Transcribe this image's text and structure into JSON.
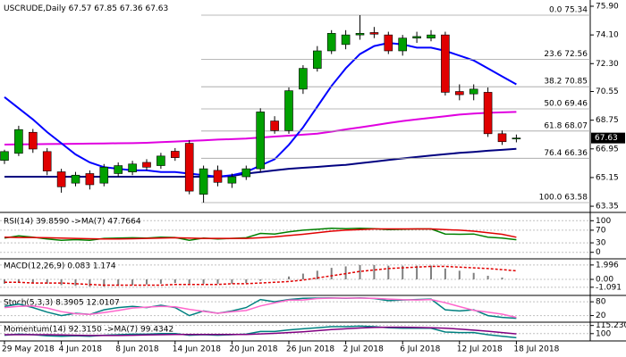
{
  "chart_data": [
    {
      "type": "candlestick",
      "title": "USCRUDE,Daily",
      "categories": [
        "29 May 2018",
        null,
        null,
        null,
        "4 Jun 2018",
        null,
        null,
        null,
        "8 Jun 2018",
        null,
        null,
        null,
        "14 Jun 2018",
        null,
        null,
        null,
        "20 Jun 2018",
        null,
        null,
        null,
        "26 Jun 2018",
        null,
        null,
        null,
        "2 Jul 2018",
        null,
        null,
        null,
        "6 Jul 2018",
        null,
        null,
        null,
        "12 Jul 2018",
        null,
        null,
        null,
        "18 Jul 2018"
      ],
      "open": [
        66.23,
        66.67,
        67.99,
        66.78,
        65.51,
        64.8,
        65.4,
        64.8,
        65.4,
        65.5,
        66.1,
        65.9,
        66.8,
        67.3,
        64.1,
        65.6,
        64.8,
        65.2,
        65.7,
        68.7,
        68.1,
        70.7,
        72.0,
        73.1,
        73.5,
        74.1,
        74.25,
        74.1,
        73.1,
        73.9,
        73.9,
        74.1,
        70.55,
        70.4,
        70.5,
        67.9,
        67.57
      ],
      "high": [
        66.9,
        68.4,
        68.2,
        67.0,
        65.7,
        65.5,
        65.6,
        66.0,
        66.1,
        66.2,
        66.3,
        66.7,
        67.0,
        67.5,
        65.9,
        65.9,
        65.4,
        65.9,
        69.5,
        69.0,
        70.8,
        72.2,
        73.4,
        74.4,
        74.4,
        75.34,
        74.6,
        74.3,
        74.1,
        74.3,
        74.4,
        74.3,
        71.0,
        71.0,
        70.8,
        68.1,
        67.85
      ],
      "low": [
        66.0,
        66.5,
        66.7,
        65.3,
        64.2,
        64.6,
        64.4,
        64.6,
        65.2,
        65.3,
        65.6,
        65.7,
        66.2,
        64.1,
        63.58,
        64.6,
        64.5,
        65.0,
        65.5,
        67.9,
        67.9,
        70.4,
        71.8,
        72.9,
        73.2,
        73.8,
        73.9,
        72.9,
        72.8,
        73.6,
        73.7,
        70.3,
        70.0,
        70.0,
        67.7,
        67.2,
        67.36
      ],
      "close": [
        66.78,
        68.16,
        66.94,
        65.56,
        64.57,
        65.3,
        64.7,
        65.8,
        65.9,
        66.0,
        65.8,
        66.5,
        66.4,
        64.3,
        65.7,
        64.85,
        65.2,
        65.7,
        69.27,
        68.1,
        70.6,
        72.0,
        73.1,
        74.2,
        74.1,
        74.2,
        74.15,
        73.1,
        73.9,
        74.0,
        74.1,
        70.5,
        70.35,
        70.7,
        67.9,
        67.4,
        67.63
      ],
      "up_color": "#00a000",
      "down_color": "#e00000",
      "ylim": [
        63.13,
        76.18
      ],
      "yticks": [
        {
          "value": 75.9,
          "label": "75.90"
        },
        {
          "value": 74.1,
          "label": "74.10"
        },
        {
          "value": 72.3,
          "label": "72.30"
        },
        {
          "value": 70.55,
          "label": "70.55"
        },
        {
          "value": 68.75,
          "label": "68.75"
        },
        {
          "value": 66.95,
          "label": "66.95"
        },
        {
          "value": 65.15,
          "label": "65.15"
        },
        {
          "value": 63.35,
          "label": "63.35"
        }
      ],
      "fib_levels": [
        {
          "value": 75.34,
          "label": "0.0 75.34"
        },
        {
          "value": 72.56,
          "label": "23.6 72.56"
        },
        {
          "value": 70.85,
          "label": "38.2 70.85"
        },
        {
          "value": 69.46,
          "label": "50.0 69.46"
        },
        {
          "value": 68.07,
          "label": "61.8 68.07"
        },
        {
          "value": 66.36,
          "label": "76.4 66.36"
        },
        {
          "value": 63.58,
          "label": "100.0 63.58"
        }
      ],
      "series": [
        {
          "color": "#000080",
          "values": [
            65.2,
            65.2,
            65.2,
            65.2,
            65.2,
            65.2,
            65.2,
            65.2,
            65.2,
            65.2,
            65.2,
            65.2,
            65.2,
            65.2,
            65.2,
            65.2,
            65.25,
            65.4,
            65.5,
            65.6,
            65.7,
            65.76,
            65.82,
            65.89,
            65.95,
            66.05,
            66.15,
            66.25,
            66.35,
            66.44,
            66.53,
            66.62,
            66.7,
            66.76,
            66.83,
            66.89,
            66.95
          ]
        },
        {
          "color": "#e000e0",
          "values": [
            67.22,
            67.23,
            67.24,
            67.25,
            67.26,
            67.27,
            67.28,
            67.29,
            67.3,
            67.31,
            67.33,
            67.37,
            67.41,
            67.45,
            67.49,
            67.53,
            67.56,
            67.6,
            67.66,
            67.72,
            67.78,
            67.84,
            67.9,
            68.03,
            68.17,
            68.3,
            68.43,
            68.57,
            68.7,
            68.8,
            68.9,
            69.0,
            69.1,
            69.17,
            69.21,
            69.24,
            69.27
          ]
        },
        {
          "color": "#0000ff",
          "values": [
            70.2,
            69.5,
            68.8,
            68.0,
            67.3,
            66.6,
            66.1,
            65.8,
            65.7,
            65.6,
            65.6,
            65.5,
            65.5,
            65.4,
            65.3,
            65.2,
            65.3,
            65.5,
            65.9,
            66.3,
            67.2,
            68.3,
            69.6,
            70.9,
            72.0,
            72.9,
            73.4,
            73.6,
            73.5,
            73.3,
            73.3,
            73.1,
            72.8,
            72.5,
            72.0,
            71.5,
            71.0
          ]
        }
      ]
    },
    {
      "type": "line",
      "title": "RSI(14) 39.8590 ->MA(7) 47.7664",
      "ylim": [
        -15,
        115
      ],
      "yticks": [
        100,
        70,
        30,
        0
      ],
      "series": [
        {
          "color": "#008000",
          "values": [
            45,
            52,
            48,
            42,
            38,
            40,
            38,
            44,
            45,
            46,
            45,
            48,
            47,
            38,
            45,
            42,
            44,
            46,
            60,
            58,
            65,
            70,
            73,
            76,
            75,
            76,
            75,
            72,
            73,
            74,
            74,
            58,
            57,
            58,
            48,
            45,
            39.859
          ]
        },
        {
          "color": "#e00000",
          "values": [
            48,
            47,
            47,
            46,
            45,
            44,
            43,
            42,
            42,
            43,
            44,
            45,
            46,
            45,
            44,
            44,
            44,
            44,
            46,
            49,
            53,
            57,
            62,
            67,
            70,
            72,
            74,
            74,
            74,
            74,
            74,
            72,
            70,
            67,
            62,
            57,
            47.7664
          ]
        }
      ]
    },
    {
      "type": "line",
      "title": "MACD(12,26,9) 0.083 1.174",
      "ylim": [
        -2.1,
        2.6
      ],
      "yticks": [
        1.996,
        {
          "value": 0,
          "label": "0.00"
        },
        -1.091
      ],
      "series": [
        {
          "color": "#808080",
          "style": "bar",
          "values": [
            -0.6,
            -0.5,
            -0.5,
            -0.6,
            -0.8,
            -0.9,
            -1.0,
            -1.0,
            -0.9,
            -0.8,
            -0.7,
            -0.6,
            -0.5,
            -0.6,
            -0.6,
            -0.6,
            -0.6,
            -0.5,
            -0.2,
            0.0,
            0.4,
            0.8,
            1.2,
            1.6,
            1.8,
            2.0,
            2.0,
            1.9,
            1.9,
            1.9,
            1.9,
            1.5,
            1.2,
            0.9,
            0.5,
            0.25,
            0.083
          ]
        },
        {
          "color": "#e00000",
          "style": "dashed",
          "values": [
            -0.4,
            -0.4,
            -0.5,
            -0.5,
            -0.5,
            -0.6,
            -0.7,
            -0.8,
            -0.8,
            -0.8,
            -0.8,
            -0.8,
            -0.7,
            -0.7,
            -0.7,
            -0.7,
            -0.6,
            -0.6,
            -0.5,
            -0.4,
            -0.3,
            -0.1,
            0.2,
            0.5,
            0.8,
            1.1,
            1.3,
            1.5,
            1.6,
            1.7,
            1.8,
            1.8,
            1.7,
            1.6,
            1.5,
            1.35,
            1.174
          ]
        }
      ]
    },
    {
      "type": "line",
      "title": "Stoch(5,3,3) 8.3905 12.0107",
      "ylim": [
        -5,
        100
      ],
      "yticks": [
        80,
        20
      ],
      "series": [
        {
          "color": "#008080",
          "values": [
            60,
            70,
            55,
            35,
            20,
            30,
            25,
            45,
            55,
            60,
            55,
            65,
            55,
            20,
            40,
            30,
            40,
            55,
            90,
            80,
            90,
            95,
            96,
            97,
            95,
            97,
            94,
            85,
            88,
            90,
            92,
            45,
            40,
            45,
            20,
            12,
            8.3905
          ]
        },
        {
          "color": "#ff66cc",
          "values": [
            55,
            60,
            62,
            53,
            37,
            28,
            25,
            33,
            42,
            53,
            57,
            60,
            58,
            47,
            38,
            30,
            37,
            42,
            62,
            75,
            87,
            88,
            94,
            96,
            96,
            96,
            95,
            92,
            89,
            88,
            90,
            76,
            59,
            43,
            35,
            26,
            12.0107
          ]
        }
      ]
    },
    {
      "type": "line",
      "title": "Momentum(14) 92.3150 ->MA(7) 99.4342",
      "ylim": [
        88,
        118
      ],
      "yticks": [
        115.2301,
        100
      ],
      "series": [
        {
          "color": "#008080",
          "values": [
            97,
            99,
            98,
            96,
            95,
            96,
            95,
            97,
            98,
            99,
            99,
            100,
            100,
            97,
            98,
            97,
            98,
            99,
            104,
            104,
            107,
            109,
            111,
            113,
            113,
            114,
            113,
            111,
            110,
            110,
            110,
            103,
            102,
            102,
            98,
            95,
            92.315
          ]
        },
        {
          "color": "#800080",
          "values": [
            98,
            98,
            98,
            98,
            97.5,
            97,
            96.5,
            96.5,
            96.5,
            97,
            97.5,
            98,
            98.5,
            98.5,
            98.5,
            98.5,
            98.5,
            98.5,
            99.5,
            100.5,
            102,
            103.5,
            105.5,
            107.5,
            109,
            110.5,
            111.5,
            112,
            112,
            111.5,
            111,
            110,
            108.5,
            106.5,
            104.5,
            102,
            99.4342
          ]
        }
      ]
    }
  ]
}
